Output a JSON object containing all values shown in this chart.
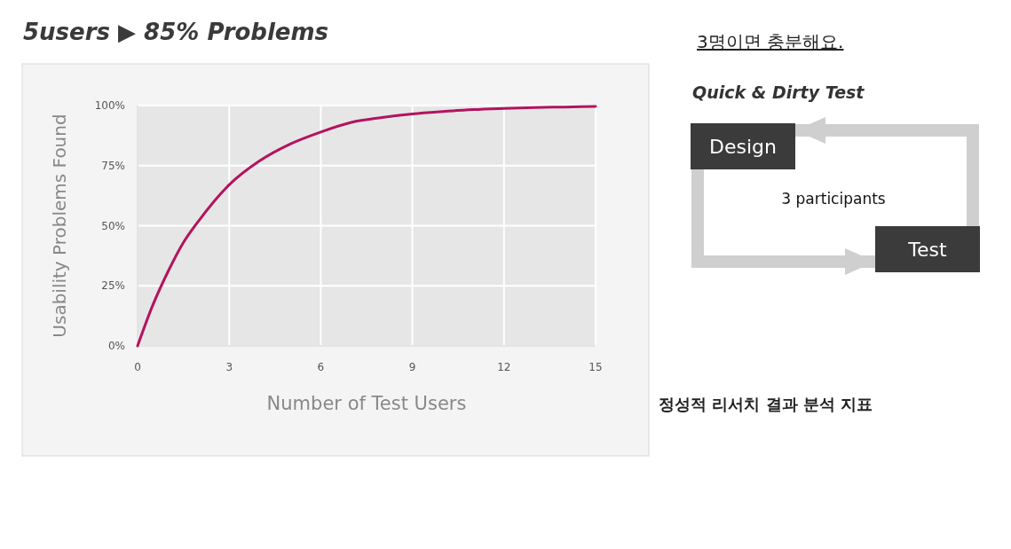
{
  "chart_data": {
    "type": "line",
    "title": "5users ▶ 85% Problems",
    "xlabel": "Number of Test Users",
    "ylabel": "Usability Problems Found",
    "x": [
      0,
      0.5,
      1,
      1.5,
      2,
      3,
      4,
      5,
      6,
      7,
      8,
      9,
      10,
      11,
      12,
      13,
      14,
      15
    ],
    "series": [
      {
        "color": "#b3135f",
        "values": [
          0,
          17,
          31,
          43,
          52,
          67,
          77,
          84,
          89,
          93,
          95,
          96.5,
          97.5,
          98.3,
          98.8,
          99.2,
          99.4,
          99.6
        ]
      }
    ],
    "xlim": [
      0,
      15
    ],
    "xticks": [
      0,
      3,
      6,
      9,
      12,
      15
    ],
    "ylim": [
      0,
      100
    ],
    "yticks": [
      {
        "value": 0,
        "label": "0%"
      },
      {
        "value": 25,
        "label": "25%"
      },
      {
        "value": 50,
        "label": "50%"
      },
      {
        "value": 75,
        "label": "75%"
      },
      {
        "value": 100,
        "label": "100%"
      }
    ],
    "grid": true,
    "marker": "none",
    "line_style": "solid",
    "annotations": [
      "3명이면 충분해요.",
      "Quick & Dirty Test",
      "Design",
      "3 participants",
      "Test",
      "정성적 리서치 결과 분석 지표"
    ]
  }
}
